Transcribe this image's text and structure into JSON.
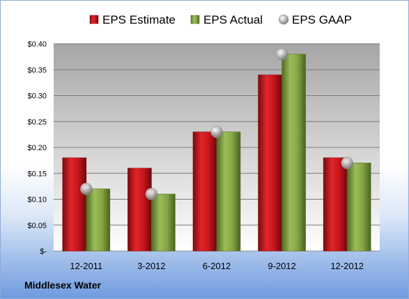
{
  "company": "Middlesex Water",
  "chart_data": {
    "type": "bar",
    "categories": [
      "12-2011",
      "3-2012",
      "6-2012",
      "9-2012",
      "12-2012"
    ],
    "series": [
      {
        "name": "EPS Estimate",
        "kind": "bar",
        "color": "#c0141c",
        "values": [
          0.18,
          0.16,
          0.23,
          0.34,
          0.18
        ]
      },
      {
        "name": "EPS Actual",
        "kind": "bar",
        "color": "#7fa040",
        "values": [
          0.12,
          0.11,
          0.23,
          0.38,
          0.17
        ]
      },
      {
        "name": "EPS GAAP",
        "kind": "marker",
        "color": "#b8b8b8",
        "values": [
          0.12,
          0.11,
          0.23,
          0.38,
          0.17
        ]
      }
    ],
    "ylim": [
      0,
      0.4
    ],
    "yticks": [
      0,
      0.05,
      0.1,
      0.15,
      0.2,
      0.25,
      0.3,
      0.35,
      0.4
    ],
    "ytick_labels": [
      "$-",
      "$0.05",
      "$0.10",
      "$0.15",
      "$0.20",
      "$0.25",
      "$0.30",
      "$0.35",
      "$0.40"
    ],
    "grid": true,
    "legend_position": "top"
  }
}
